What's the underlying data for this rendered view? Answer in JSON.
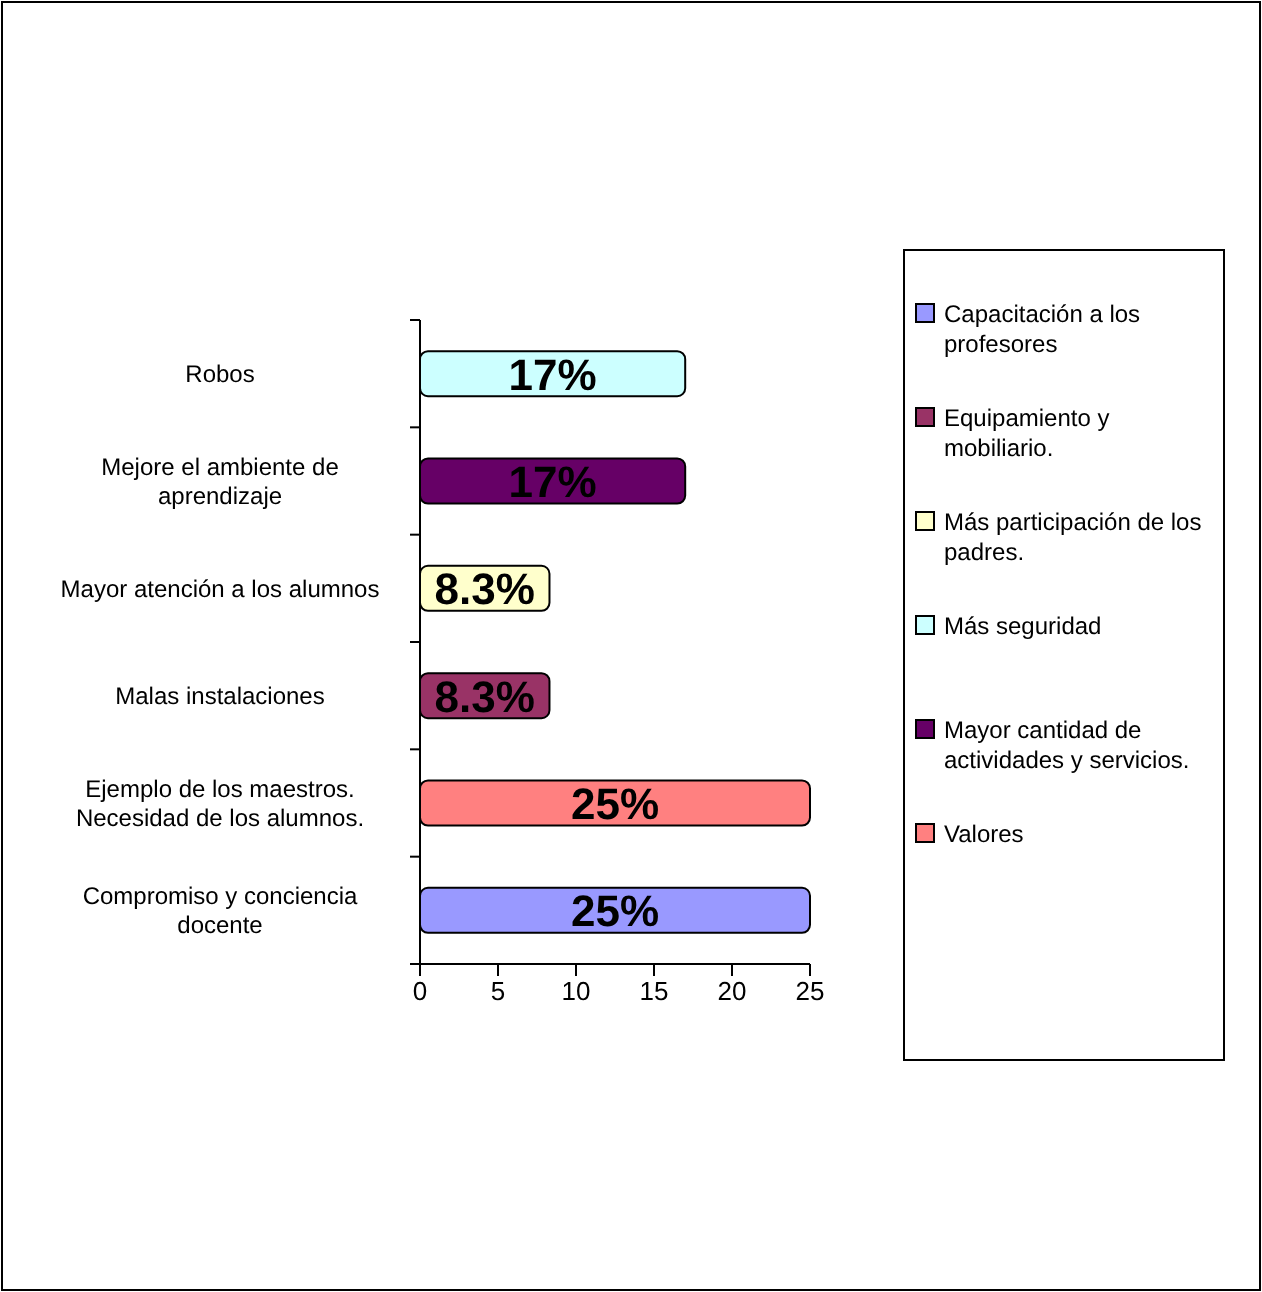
{
  "chart_data": {
    "type": "bar",
    "orientation": "horizontal",
    "categories": [
      "Robos",
      "Mejore el ambiente de aprendizaje",
      "Mayor atención a los alumnos",
      "Malas instalaciones",
      "Ejemplo de los maestros. Necesidad de los alumnos.",
      "Compromiso y conciencia docente"
    ],
    "series": [
      {
        "name": "Capacitación a los profesores",
        "color": "#9999ff",
        "values": [
          null,
          null,
          null,
          null,
          null,
          25
        ],
        "value_labels": [
          null,
          null,
          null,
          null,
          null,
          "25%"
        ]
      },
      {
        "name": "Equipamiento y mobiliario.",
        "color": "#993366",
        "values": [
          null,
          null,
          null,
          8.3,
          null,
          null
        ],
        "value_labels": [
          null,
          null,
          null,
          "8.3%",
          null,
          null
        ]
      },
      {
        "name": "Más participación de los padres.",
        "color": "#ffffcc",
        "values": [
          null,
          null,
          8.3,
          null,
          null,
          null
        ],
        "value_labels": [
          null,
          null,
          "8.3%",
          null,
          null,
          null
        ]
      },
      {
        "name": "Más seguridad",
        "color": "#ccffff",
        "values": [
          17,
          null,
          null,
          null,
          null,
          null
        ],
        "value_labels": [
          "17%",
          null,
          null,
          null,
          null,
          null
        ]
      },
      {
        "name": "Mayor cantidad de actividades y servicios.",
        "color": "#660066",
        "values": [
          null,
          17,
          null,
          null,
          null,
          null
        ],
        "value_labels": [
          null,
          "17%",
          null,
          null,
          null,
          null
        ]
      },
      {
        "name": "Valores",
        "color": "#ff8080",
        "values": [
          null,
          null,
          null,
          null,
          25,
          null
        ],
        "value_labels": [
          null,
          null,
          null,
          null,
          "25%",
          null
        ]
      }
    ],
    "xlim": [
      0,
      25
    ],
    "xticks": [
      0,
      5,
      10,
      15,
      20,
      25
    ],
    "legend": "right",
    "grid": false
  }
}
